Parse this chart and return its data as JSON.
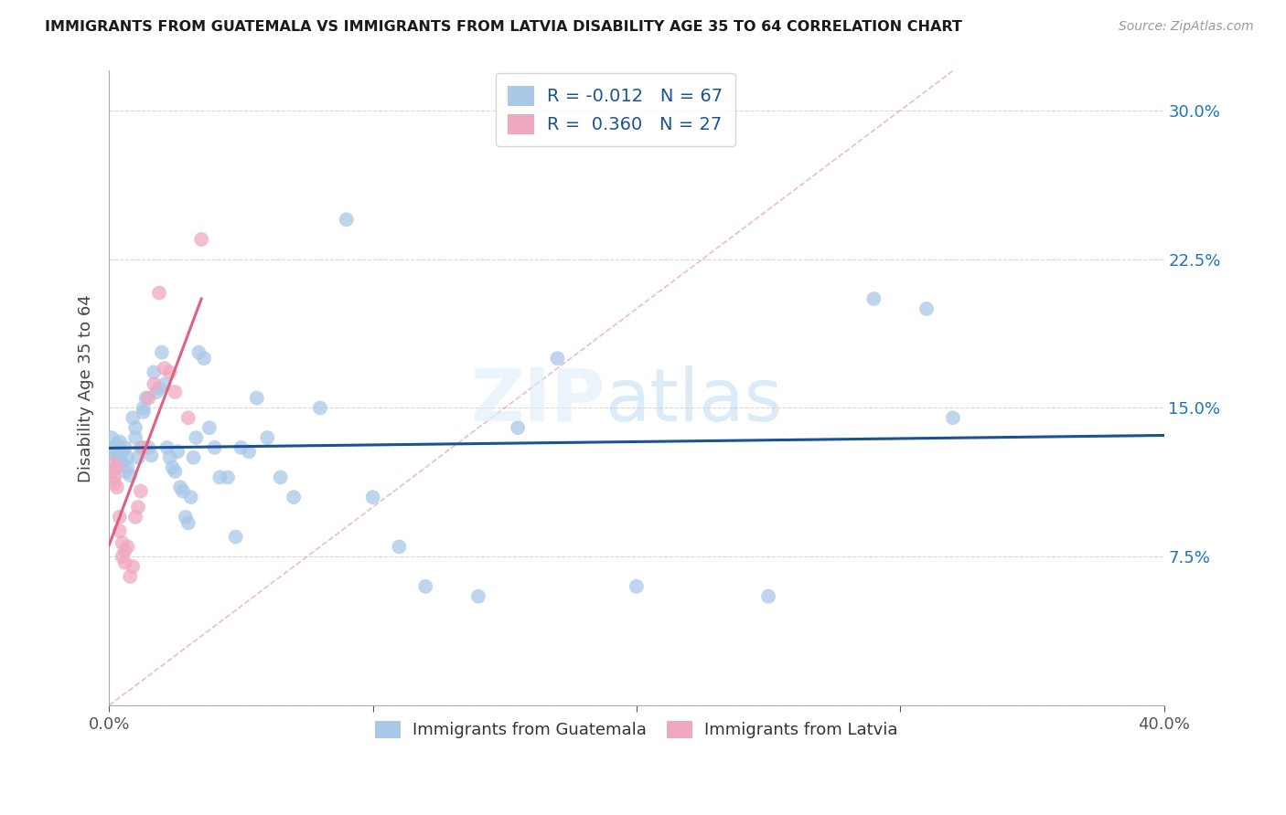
{
  "title": "IMMIGRANTS FROM GUATEMALA VS IMMIGRANTS FROM LATVIA DISABILITY AGE 35 TO 64 CORRELATION CHART",
  "source": "Source: ZipAtlas.com",
  "ylabel": "Disability Age 35 to 64",
  "xlim": [
    0.0,
    0.4
  ],
  "ylim": [
    0.0,
    0.32
  ],
  "R_guatemala": -0.012,
  "N_guatemala": 67,
  "R_latvia": 0.36,
  "N_latvia": 27,
  "color_guatemala": "#a8c8e8",
  "color_latvia": "#f0a8c0",
  "line_color_guatemala": "#1a5296",
  "line_color_latvia": "#e06080",
  "diagonal_color": "#e8a0b0",
  "legend_color": "#1a5296",
  "guatemala_x": [
    0.001,
    0.002,
    0.002,
    0.003,
    0.003,
    0.004,
    0.004,
    0.005,
    0.005,
    0.006,
    0.006,
    0.007,
    0.007,
    0.008,
    0.009,
    0.01,
    0.01,
    0.011,
    0.012,
    0.013,
    0.013,
    0.014,
    0.015,
    0.016,
    0.017,
    0.018,
    0.019,
    0.02,
    0.021,
    0.022,
    0.023,
    0.024,
    0.025,
    0.026,
    0.027,
    0.028,
    0.029,
    0.03,
    0.031,
    0.032,
    0.033,
    0.034,
    0.036,
    0.038,
    0.04,
    0.042,
    0.045,
    0.048,
    0.05,
    0.053,
    0.056,
    0.06,
    0.065,
    0.07,
    0.08,
    0.09,
    0.1,
    0.11,
    0.12,
    0.14,
    0.155,
    0.17,
    0.2,
    0.25,
    0.29,
    0.31,
    0.32
  ],
  "guatemala_y": [
    0.135,
    0.128,
    0.13,
    0.125,
    0.132,
    0.127,
    0.133,
    0.128,
    0.122,
    0.13,
    0.118,
    0.125,
    0.12,
    0.116,
    0.145,
    0.14,
    0.135,
    0.125,
    0.13,
    0.15,
    0.148,
    0.155,
    0.13,
    0.126,
    0.168,
    0.158,
    0.16,
    0.178,
    0.162,
    0.13,
    0.125,
    0.12,
    0.118,
    0.128,
    0.11,
    0.108,
    0.095,
    0.092,
    0.105,
    0.125,
    0.135,
    0.178,
    0.175,
    0.14,
    0.13,
    0.115,
    0.115,
    0.085,
    0.13,
    0.128,
    0.155,
    0.135,
    0.115,
    0.105,
    0.15,
    0.245,
    0.105,
    0.08,
    0.06,
    0.055,
    0.14,
    0.175,
    0.06,
    0.055,
    0.205,
    0.2,
    0.145
  ],
  "latvia_x": [
    0.001,
    0.001,
    0.002,
    0.002,
    0.003,
    0.003,
    0.004,
    0.004,
    0.005,
    0.005,
    0.006,
    0.006,
    0.007,
    0.008,
    0.009,
    0.01,
    0.011,
    0.012,
    0.013,
    0.015,
    0.017,
    0.019,
    0.021,
    0.023,
    0.025,
    0.03,
    0.035
  ],
  "latvia_y": [
    0.122,
    0.118,
    0.115,
    0.112,
    0.12,
    0.11,
    0.095,
    0.088,
    0.082,
    0.075,
    0.078,
    0.072,
    0.08,
    0.065,
    0.07,
    0.095,
    0.1,
    0.108,
    0.13,
    0.155,
    0.162,
    0.208,
    0.17,
    0.168,
    0.158,
    0.145,
    0.235
  ]
}
